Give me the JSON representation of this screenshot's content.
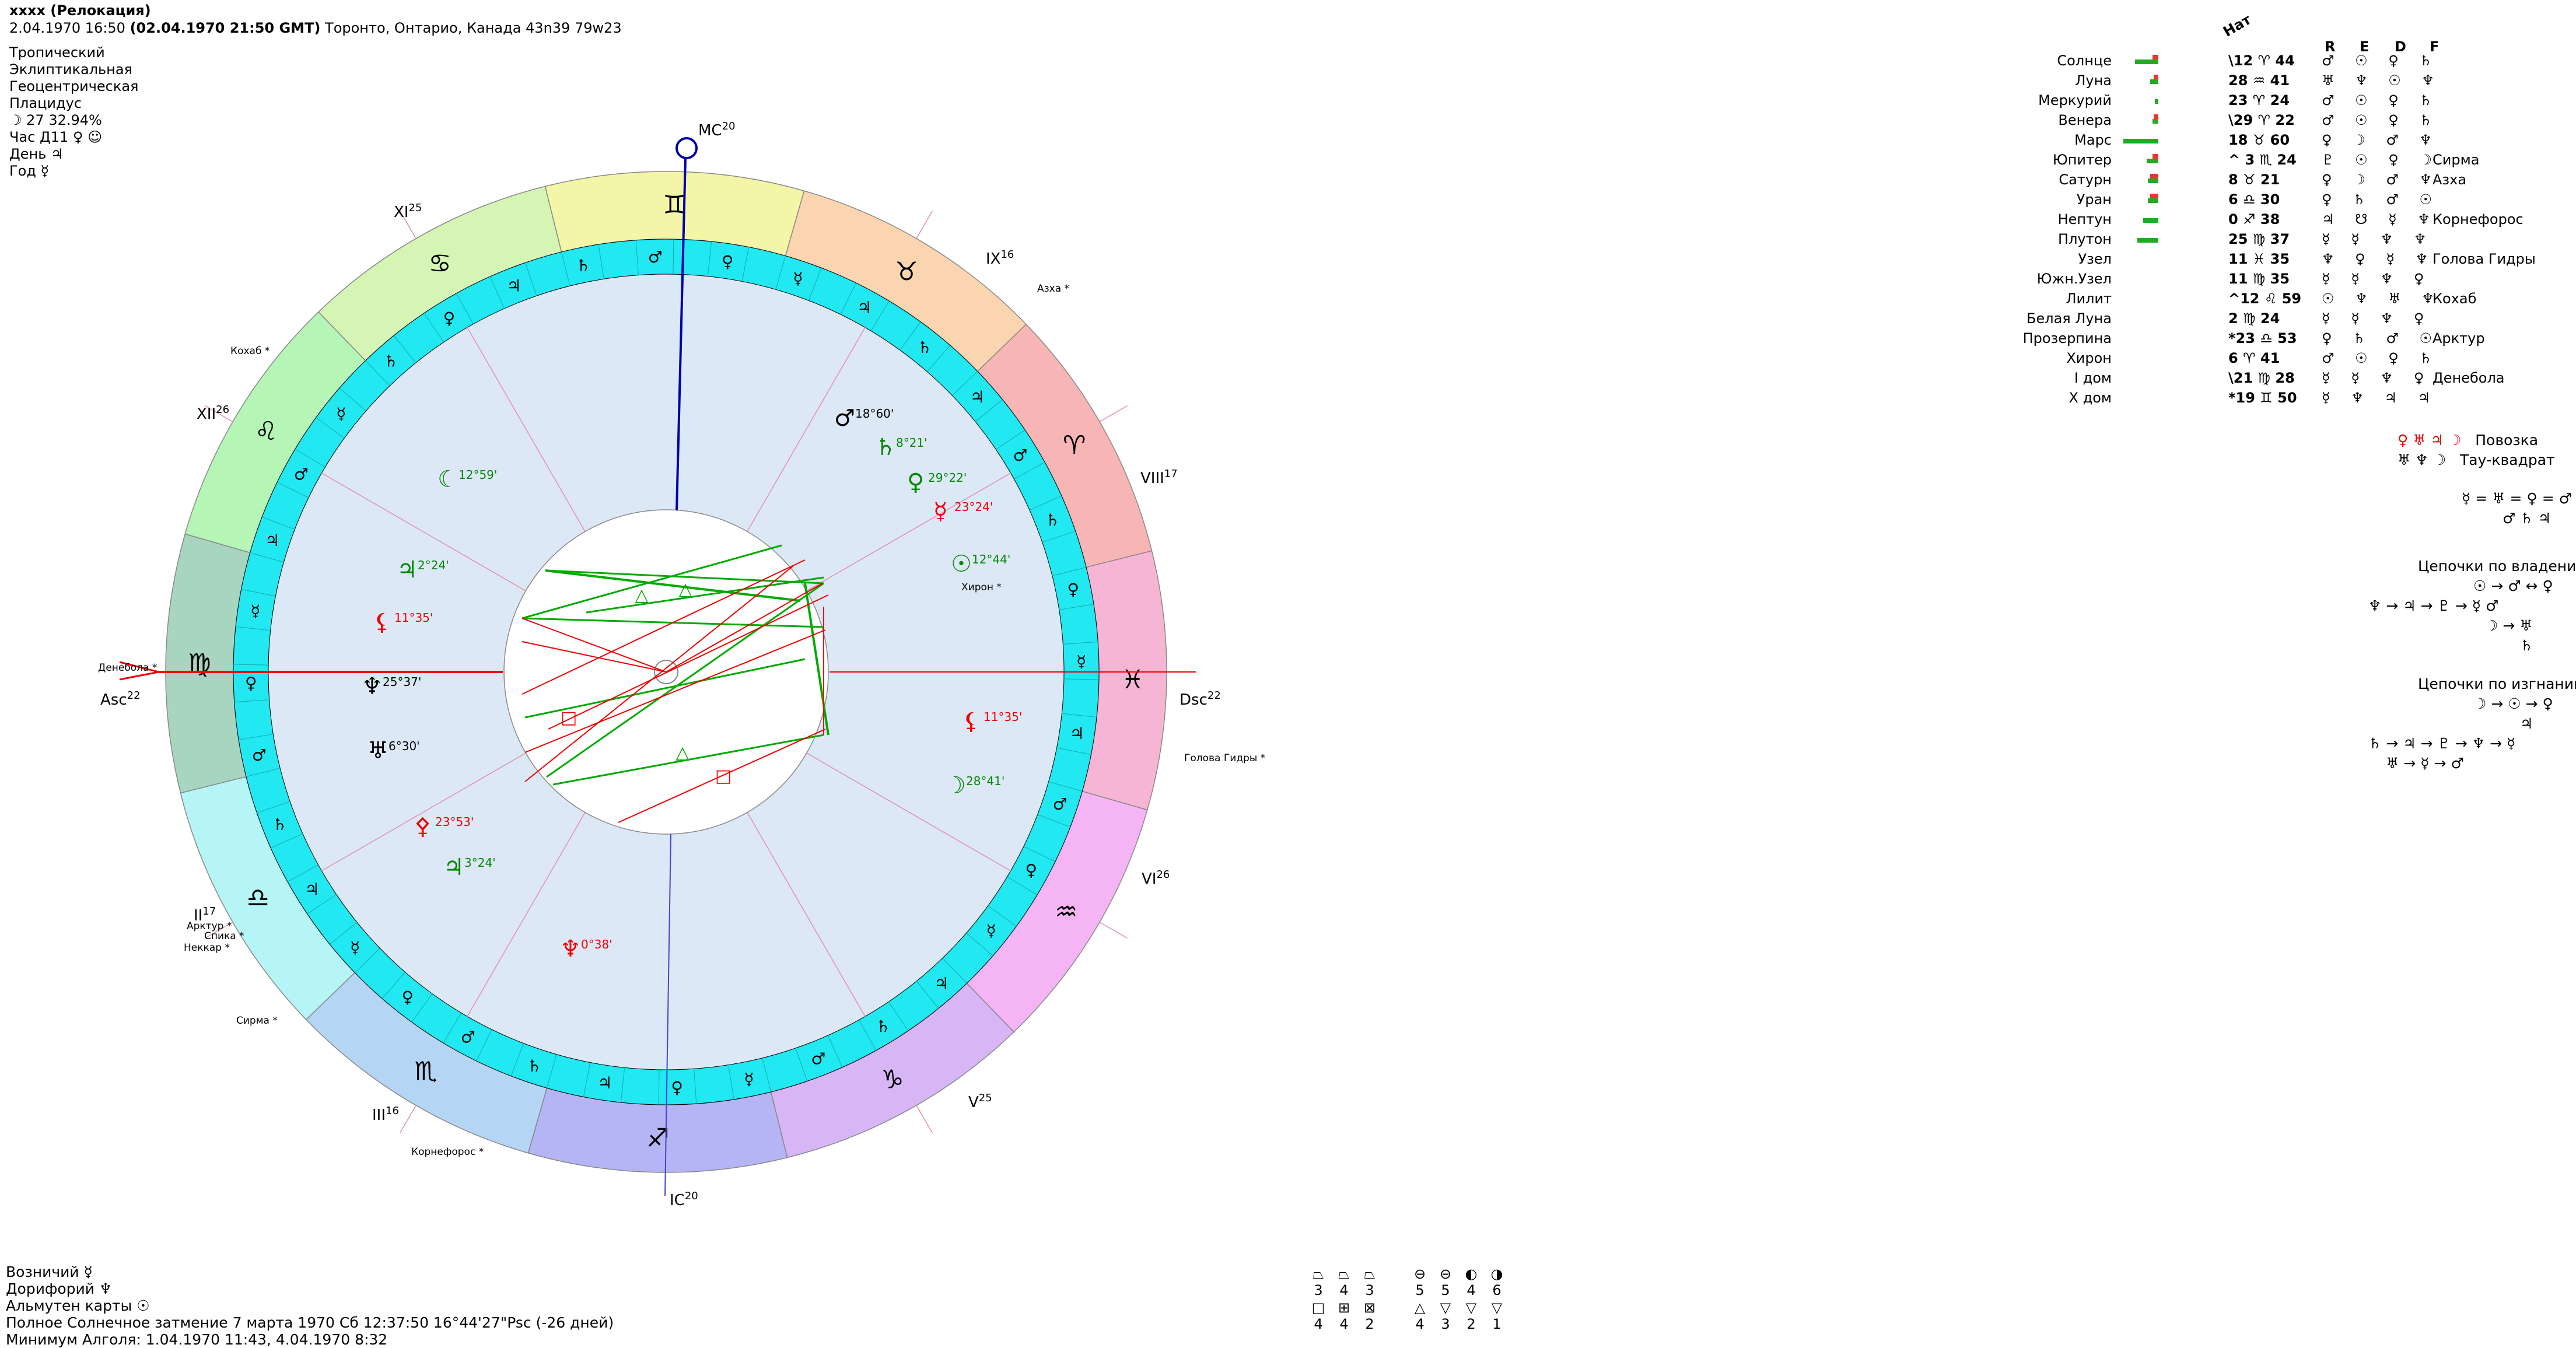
{
  "header": {
    "title": "xxxx (Релокация)",
    "date_line_pre": "2.04.1970   16:50",
    "date_line_bold": "(02.04.1970  21:50 GMT)",
    "date_line_post": "Торонто, Онтарио, Канада 43n39  79w23",
    "settings": [
      "Тропический",
      "Эклиптикальная",
      "Геоцентрическая",
      "Плацидус"
    ],
    "moon_phase": "☽  27 32.94%",
    "hour": "Час Д11  ♀ ☺",
    "day": "День  ♃",
    "year": "Год  ☿"
  },
  "axes": {
    "mc": "MC",
    "mc_deg": "20",
    "ic": "IC",
    "ic_deg": "20",
    "asc": "Asc",
    "asc_deg": "22",
    "dsc": "Dsc",
    "dsc_deg": "22"
  },
  "houses": [
    {
      "label": "XI",
      "deg": "25"
    },
    {
      "label": "IX",
      "deg": "16"
    },
    {
      "label": "XII",
      "deg": "26"
    },
    {
      "label": "VIII",
      "deg": "17"
    },
    {
      "label": "II",
      "deg": "17"
    },
    {
      "label": "VI",
      "deg": "26"
    },
    {
      "label": "III",
      "deg": "16"
    },
    {
      "label": "V",
      "deg": "25"
    }
  ],
  "stars": [
    "Азха",
    "Кохаб",
    "Денебола",
    "Хирон",
    "Голова Гидры",
    "Арктур",
    "Спика",
    "Неккар",
    "Сирма",
    "Корнефорос"
  ],
  "signs": [
    "♊",
    "♉",
    "♈",
    "♓",
    "♒",
    "♑",
    "♐",
    "♏",
    "♎",
    "♍",
    "♌",
    "♋"
  ],
  "inner_planets": [
    {
      "glyph": "☾",
      "text": "12°59'",
      "color": "#080"
    },
    {
      "glyph": "♃",
      "text": "2°24'",
      "color": "#080"
    },
    {
      "glyph": "⚸",
      "text": "11°35'",
      "color": "#e00"
    },
    {
      "glyph": "♆",
      "text": "25°37'",
      "color": "#000"
    },
    {
      "glyph": "♅",
      "text": "6°30'",
      "color": "#000"
    },
    {
      "glyph": "⚴",
      "text": "23°53'",
      "color": "#e00"
    },
    {
      "glyph": "♃",
      "text": "3°24'",
      "color": "#080"
    },
    {
      "glyph": "♆",
      "text": "0°38'",
      "color": "#e00"
    },
    {
      "glyph": "♂",
      "text": "18°60'",
      "color": "#000"
    },
    {
      "glyph": "♄",
      "text": "8°21'",
      "color": "#080"
    },
    {
      "glyph": "♀",
      "text": "29°22'",
      "color": "#080"
    },
    {
      "glyph": "☿",
      "text": "23°24'",
      "color": "#e00"
    },
    {
      "glyph": "☉",
      "text": "12°44'",
      "color": "#080"
    },
    {
      "glyph": "⚸",
      "text": "11°35'",
      "color": "#e00"
    },
    {
      "glyph": "☽",
      "text": "28°41'",
      "color": "#080"
    }
  ],
  "table": {
    "header_nat": "Нат",
    "header_cols": [
      "R",
      "E",
      "D",
      "F"
    ],
    "rows": [
      {
        "name": "Солнце",
        "pos": "\\12 ♈ 44",
        "dig": "♂ ☉ ♀ ♄",
        "star": ""
      },
      {
        "name": "Луна",
        "pos": "28 ♒ 41",
        "dig": "♅ ♆ ☉ ♆",
        "star": ""
      },
      {
        "name": "Меркурий",
        "pos": "23 ♈ 24",
        "dig": "♂ ☉ ♀ ♄",
        "star": ""
      },
      {
        "name": "Венера",
        "pos": "\\29 ♈ 22",
        "dig": "♂ ☉ ♀ ♄",
        "star": ""
      },
      {
        "name": "Марс",
        "pos": "18 ♉ 60",
        "dig": "♀ ☽ ♂ ♆",
        "star": ""
      },
      {
        "name": "Юпитер",
        "pos": "^ 3 ♏ 24",
        "dig": "♇ ☉ ♀ ☽",
        "star": "Сирма"
      },
      {
        "name": "Сатурн",
        "pos": "8 ♉ 21",
        "dig": "♀ ☽ ♂ ♆",
        "star": "Азха"
      },
      {
        "name": "Уран",
        "pos": "6 ♎ 30",
        "dig": "♀ ♄ ♂ ☉",
        "star": ""
      },
      {
        "name": "Нептун",
        "pos": "0 ♐ 38",
        "dig": "♃ ☋ ☿ ♆",
        "star": "Корнефорос"
      },
      {
        "name": "Плутон",
        "pos": "25 ♍ 37",
        "dig": "☿ ☿ ♆ ♆",
        "star": ""
      },
      {
        "name": "Узел",
        "pos": "11 ♓ 35",
        "dig": "♆ ♀ ☿ ♆",
        "star": "Голова Гидры"
      },
      {
        "name": "Южн.Узел",
        "pos": "11 ♍ 35",
        "dig": "☿ ☿ ♆ ♀",
        "star": ""
      },
      {
        "name": "Лилит",
        "pos": "^12 ♌ 59",
        "dig": "☉ ♆ ♅ ♆",
        "star": "Кохаб"
      },
      {
        "name": "Белая Луна",
        "pos": "2 ♍ 24",
        "dig": "☿ ☿ ♆ ♀",
        "star": ""
      },
      {
        "name": "Прозерпина",
        "pos": "*23 ♎ 53",
        "dig": "♀ ♄ ♂ ☉",
        "star": "Арктур"
      },
      {
        "name": "Хирон",
        "pos": "6 ♈ 41",
        "dig": "♂ ☉ ♀ ♄",
        "star": ""
      },
      {
        "name": "I дом",
        "pos": "\\21 ♍ 28",
        "dig": "☿ ☿ ♆ ♀",
        "star": "Денебола"
      },
      {
        "name": "X дом",
        "pos": "*19 ♊ 50",
        "dig": "☿ ♆ ♃ ♃",
        "star": ""
      }
    ]
  },
  "configs": [
    {
      "glyphs": "♀ ♅ ♃ ☽",
      "name": "Повозка"
    },
    {
      "glyphs": "♅ ♆ ☽",
      "name": "Тау-квадрат"
    }
  ],
  "equal_line1": "☿ = ♅ = ♀ = ♂",
  "equal_line2": "♂ ♄ ♃",
  "rulership": {
    "title": "Цепочки по владению",
    "lines": [
      "☉ → ♂ ↔ ♀",
      "♆ → ♃ → ♇ → ☿ ♂",
      "☽ → ♅",
      "♄"
    ]
  },
  "exile": {
    "title": "Цепочки по изгнанию",
    "lines": [
      "☽ → ☉ → ♀",
      "♃",
      "♄ → ♃ → ♇ → ♆ → ☿",
      "♅ → ☿ → ♂"
    ]
  },
  "bottom": {
    "lines": [
      "Возничий  ☿",
      "Дорифорий  ♆",
      "Альмутен карты  ☉",
      "Полное Солнечное затмение 7 марта 1970 Сб 12:37:50 16°44'27\"Psc (-26 дней)",
      "Минимум Алголя: 1.04.1970 11:43,  4.04.1970  8:32"
    ]
  },
  "figures": {
    "row1_counts": [
      "3",
      "4",
      "3",
      "5",
      "5",
      "4",
      "6"
    ],
    "row2_counts": [
      "4",
      "4",
      "2",
      "4",
      "3",
      "2",
      "1"
    ]
  }
}
